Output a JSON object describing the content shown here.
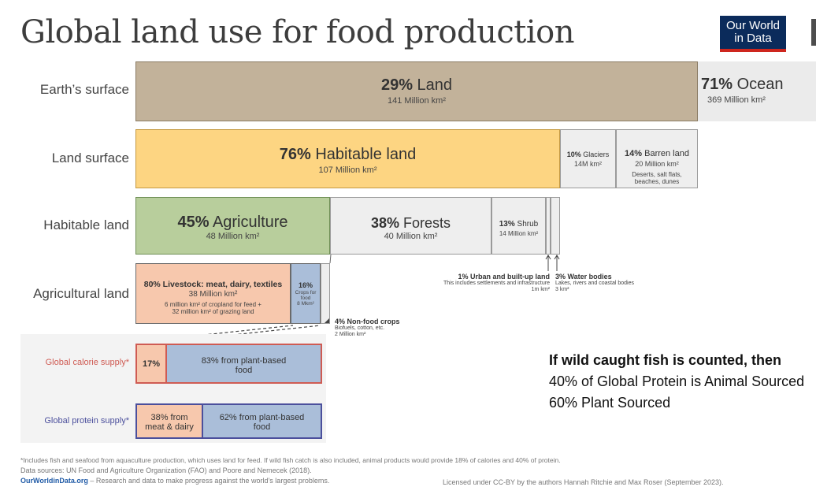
{
  "title": "Global land use for food production",
  "logo": {
    "line1": "Our World",
    "line2": "in Data"
  },
  "rows": {
    "earth": "Earth’s surface",
    "land": "Land surface",
    "habitable": "Habitable land",
    "agricultural": "Agricultural land",
    "calorie": "Global calorie supply*",
    "protein": "Global protein supply*"
  },
  "earth": {
    "land": {
      "pct": "29%",
      "name": "Land",
      "area": "141 Million km²"
    },
    "ocean": {
      "pct": "71%",
      "name": "Ocean",
      "area": "369 Million km²"
    }
  },
  "land_surface": {
    "habitable": {
      "pct": "76%",
      "name": "Habitable land",
      "area": "107 Million km²"
    },
    "glaciers": {
      "pct": "10%",
      "name": "Glaciers",
      "area": "14M km²"
    },
    "barren": {
      "pct": "14%",
      "name": "Barren land",
      "area": "20 Million km²",
      "note1": "Deserts, salt flats,",
      "note2": "beaches, dunes"
    }
  },
  "habitable_land": {
    "agriculture": {
      "pct": "45%",
      "name": "Agriculture",
      "area": "48 Million km²"
    },
    "forests": {
      "pct": "38%",
      "name": "Forests",
      "area": "40 Million km²"
    },
    "shrub": {
      "pct": "13%",
      "name": "Shrub",
      "area": "14 Million km²"
    },
    "urban": {
      "title": "1% Urban and built-up land",
      "desc": "This includes settlements and infrastructure",
      "area": "1m km²"
    },
    "water": {
      "title": "3% Water bodies",
      "desc": "Lakes, rivers and coastal bodies",
      "area": "3 km²"
    }
  },
  "agricultural_land": {
    "livestock": {
      "title": "80% Livestock: meat, dairy, textiles",
      "area": "38 Million km²",
      "note1": "6 million km² of cropland for feed +",
      "note2": "32 million km² of grazing land"
    },
    "crops": {
      "pct": "16%",
      "line1": "Crops for",
      "line2": "food",
      "area": "8 Mkm²"
    },
    "nonfood": {
      "title": "4% Non-food crops",
      "desc": "Biofuels, cotton, etc.",
      "area": "2 Million km²"
    }
  },
  "calorie_supply": {
    "animal": "17%",
    "plant_line1": "83% from plant-based",
    "plant_line2": "food"
  },
  "protein_supply": {
    "animal_line1": "38% from",
    "animal_line2": "meat & dairy",
    "plant_line1": "62% from plant-based",
    "plant_line2": "food"
  },
  "side_note": {
    "line1": "If wild caught fish is counted, then",
    "line2": "40% of Global Protein is Animal Sourced",
    "line3": "60%  Plant Sourced"
  },
  "footer": {
    "footnote": "*Includes fish and seafood from aquaculture production, which uses land for feed. If wild fish catch is also included, animal products would provide 18% of calories and 40% of protein.",
    "sources": "Data sources: UN Food and Agriculture Organization (FAO) and Poore and Nemecek (2018).",
    "site": "OurWorldinData.org",
    "tagline": " – Research and data to make progress against the world’s largest problems.",
    "license": "Licensed under CC-BY by the authors Hannah Ritchie and Max Roser (September 2023)."
  },
  "colors": {
    "land": "#c2b29a",
    "habitable": "#fdd582",
    "agriculture": "#b8ce9c",
    "animal": "#f7c8ad",
    "plant": "#aabed9",
    "neutral": "#eeeeee",
    "calorie_accent": "#cf5b53",
    "protein_accent": "#4b4f9c",
    "logo": "#0b2b5b"
  }
}
